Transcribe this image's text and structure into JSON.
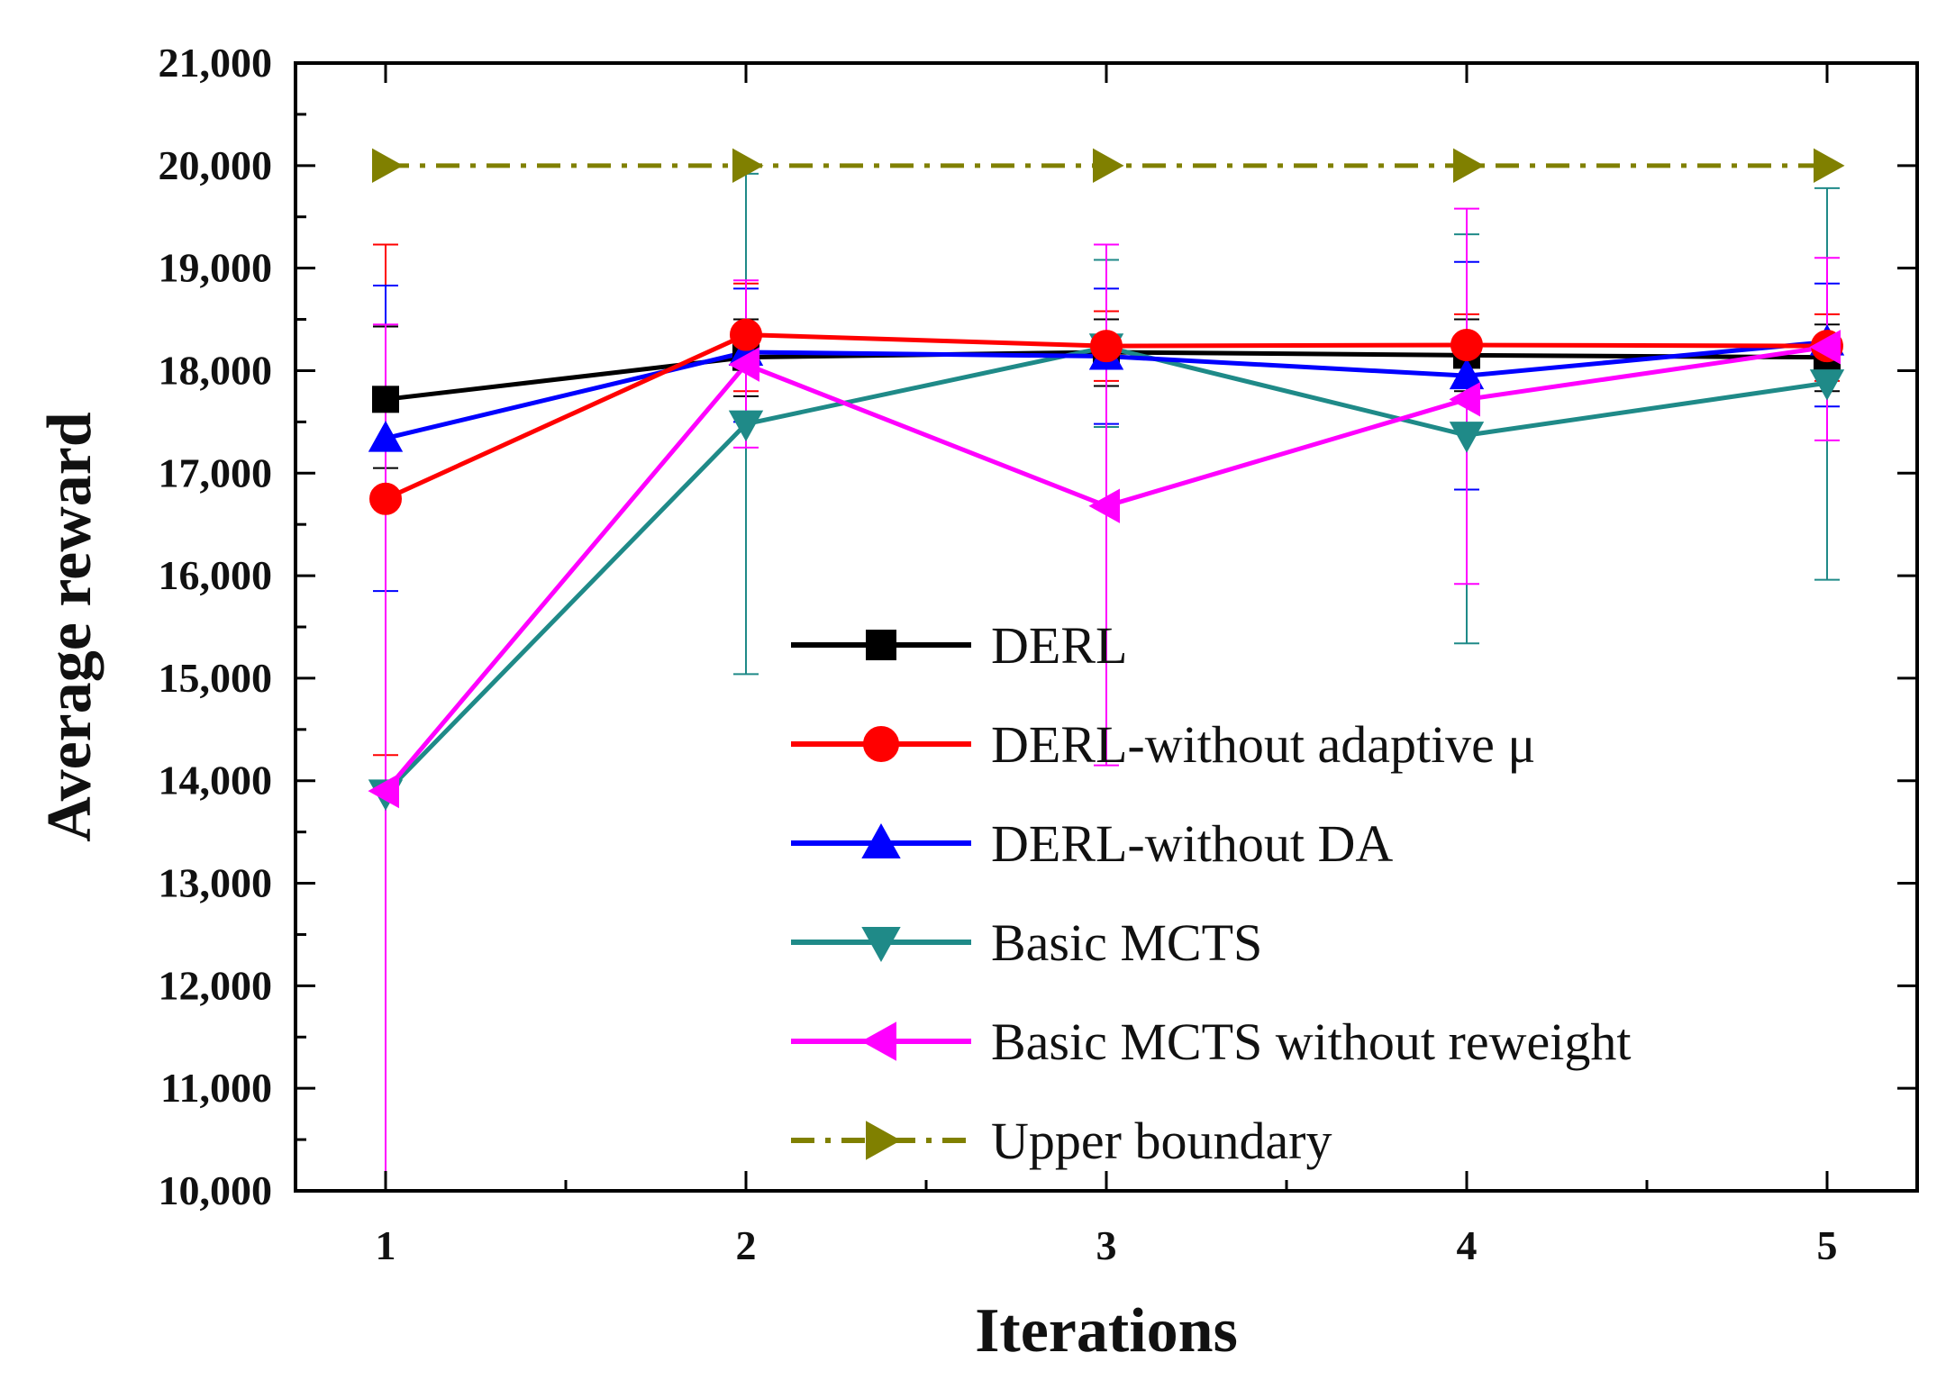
{
  "chart_data": {
    "type": "line",
    "title": "",
    "xlabel": "Iterations",
    "ylabel": "Average reward",
    "x": [
      1,
      2,
      3,
      4,
      5
    ],
    "xlim": [
      0.75,
      5.25
    ],
    "ylim": [
      10000,
      21000
    ],
    "x_tick_labels": [
      "1",
      "2",
      "3",
      "4",
      "5"
    ],
    "y_ticks": [
      10000,
      11000,
      12000,
      13000,
      14000,
      15000,
      16000,
      17000,
      18000,
      19000,
      20000,
      21000
    ],
    "y_tick_labels": [
      "10,000",
      "11,000",
      "12,000",
      "13,000",
      "14,000",
      "15,000",
      "16,000",
      "17,000",
      "18,000",
      "19,000",
      "20,000",
      "21,000"
    ],
    "grid": false,
    "legend_position": "bottom-right",
    "series": [
      {
        "name": "DERL",
        "color": "#000000",
        "marker": "square",
        "dash": "solid",
        "values": [
          17720,
          18130,
          18180,
          18150,
          18130
        ],
        "error": [
          [
            17050,
            18430
          ],
          [
            17750,
            18500
          ],
          [
            17850,
            18500
          ],
          [
            17800,
            18500
          ],
          [
            17800,
            18450
          ]
        ]
      },
      {
        "name": "DERL-without  adaptive μ",
        "color": "#ff0000",
        "marker": "circle",
        "dash": "solid",
        "values": [
          16750,
          18350,
          18240,
          18250,
          18240
        ],
        "error": [
          [
            14250,
            19230
          ],
          [
            17800,
            18850
          ],
          [
            17900,
            18580
          ],
          [
            17900,
            18550
          ],
          [
            17900,
            18550
          ]
        ]
      },
      {
        "name": "DERL-without  DA",
        "color": "#0000ff",
        "marker": "triangle-up",
        "dash": "solid",
        "values": [
          17340,
          18180,
          18140,
          17950,
          18280
        ],
        "error": [
          [
            15850,
            18830
          ],
          [
            17500,
            18800
          ],
          [
            17480,
            18800
          ],
          [
            16840,
            19060
          ],
          [
            17650,
            18850
          ]
        ]
      },
      {
        "name": "Basic MCTS",
        "color": "#1f8a88",
        "marker": "triangle-down",
        "dash": "solid",
        "values": [
          13880,
          17480,
          18230,
          17370,
          17880
        ],
        "error": [
          [
            10000,
            13900
          ],
          [
            15040,
            19920
          ],
          [
            17450,
            19080
          ],
          [
            15340,
            19330
          ],
          [
            15960,
            19780
          ]
        ]
      },
      {
        "name": "Basic MCTS without reweight",
        "color": "#ff00ff",
        "marker": "triangle-left",
        "dash": "solid",
        "values": [
          13900,
          18060,
          16680,
          17720,
          18230
        ],
        "error": [
          [
            10000,
            18450
          ],
          [
            17250,
            18880
          ],
          [
            14150,
            19230
          ],
          [
            15920,
            19580
          ],
          [
            17320,
            19100
          ]
        ]
      },
      {
        "name": "Upper boundary",
        "color": "#808000",
        "marker": "triangle-right",
        "dash": "dashdot",
        "values": [
          20000,
          20000,
          20000,
          20000,
          20000
        ],
        "error": null
      }
    ]
  }
}
